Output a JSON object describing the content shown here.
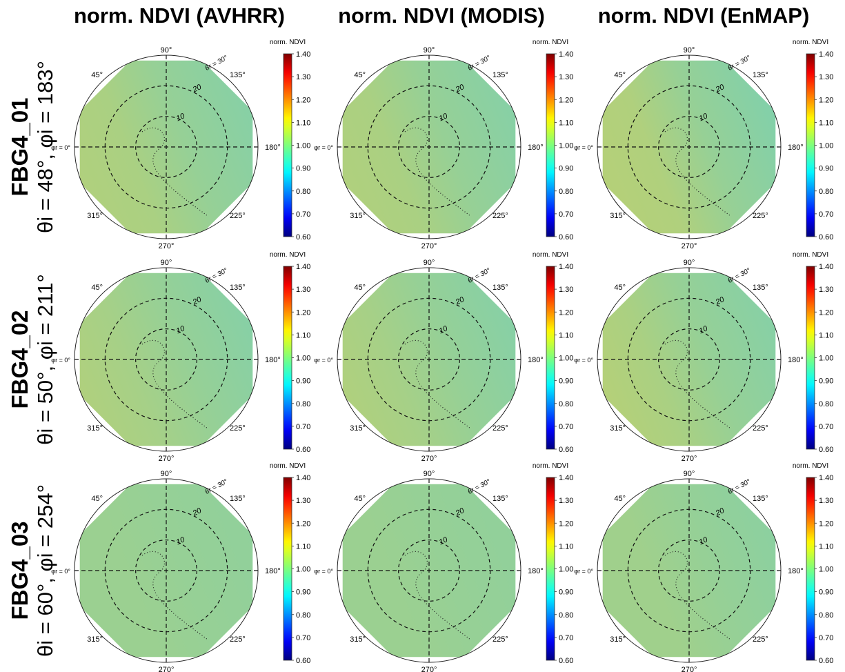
{
  "column_titles": [
    "norm. NDVI (AVHRR)",
    "norm. NDVI (MODIS)",
    "norm. NDVI (EnMAP)"
  ],
  "row_labels": [
    {
      "name": "FBG4_01",
      "condition": "θi = 48°, φi = 183°"
    },
    {
      "name": "FBG4_02",
      "condition": "θi = 50°, φi = 211°"
    },
    {
      "name": "FBG4_03",
      "condition": "θi = 60°, φi = 254°"
    }
  ],
  "azimuth_labels": [
    "90°",
    "135°",
    "180°",
    "225°",
    "270°",
    "315°",
    "φr = 0°",
    "45°"
  ],
  "zenith_ring_labels": [
    "10",
    "20",
    "θr = 30°"
  ],
  "colorbar": {
    "title": "norm. NDVI",
    "ticks": [
      "1.40",
      "1.30",
      "1.20",
      "1.10",
      "1.00",
      "0.90",
      "0.80",
      "0.70",
      "0.60"
    ],
    "colors": [
      "#00007f",
      "#0000ff",
      "#007fff",
      "#00ffff",
      "#7fff7f",
      "#ffff00",
      "#ff7f00",
      "#ff0000",
      "#7f0000"
    ]
  },
  "chart_data": {
    "type": "heatmap",
    "projection": "polar",
    "vmin": 0.6,
    "vmax": 1.4,
    "r_max_deg": 30,
    "r_rings_deg": [
      10,
      20,
      30
    ],
    "panels": [
      {
        "row": "FBG4_01",
        "column": "norm. NDVI (AVHRR)",
        "values": {
          "left_bottom": 1.05,
          "left": 1.04,
          "center": 1.0,
          "right": 0.97
        },
        "contour_level": 1.0
      },
      {
        "row": "FBG4_01",
        "column": "norm. NDVI (MODIS)",
        "values": {
          "left_bottom": 1.05,
          "left": 1.04,
          "center": 1.0,
          "right": 0.97
        },
        "contour_level": 1.0
      },
      {
        "row": "FBG4_01",
        "column": "norm. NDVI (EnMAP)",
        "values": {
          "left_bottom": 1.06,
          "left": 1.05,
          "center": 1.0,
          "right": 0.96
        },
        "contour_level": 1.0
      },
      {
        "row": "FBG4_02",
        "column": "norm. NDVI (AVHRR)",
        "values": {
          "left_bottom": 1.05,
          "left": 1.03,
          "center": 1.0,
          "right": 0.97
        },
        "contour_level": 1.0
      },
      {
        "row": "FBG4_02",
        "column": "norm. NDVI (MODIS)",
        "values": {
          "left_bottom": 1.05,
          "left": 1.03,
          "center": 1.0,
          "right": 0.97
        },
        "contour_level": 1.0
      },
      {
        "row": "FBG4_02",
        "column": "norm. NDVI (EnMAP)",
        "values": {
          "left_bottom": 1.06,
          "left": 1.04,
          "center": 1.0,
          "right": 0.97
        },
        "contour_level": 1.0
      },
      {
        "row": "FBG4_03",
        "column": "norm. NDVI (AVHRR)",
        "values": {
          "left_bottom": 1.01,
          "left": 1.01,
          "center": 1.0,
          "right": 0.99
        },
        "contour_level": 1.0
      },
      {
        "row": "FBG4_03",
        "column": "norm. NDVI (MODIS)",
        "values": {
          "left_bottom": 1.01,
          "left": 1.01,
          "center": 1.0,
          "right": 0.99
        },
        "contour_level": 1.0
      },
      {
        "row": "FBG4_03",
        "column": "norm. NDVI (EnMAP)",
        "values": {
          "left_bottom": 1.02,
          "left": 1.02,
          "center": 1.0,
          "right": 0.98
        },
        "contour_level": 1.0
      }
    ]
  }
}
